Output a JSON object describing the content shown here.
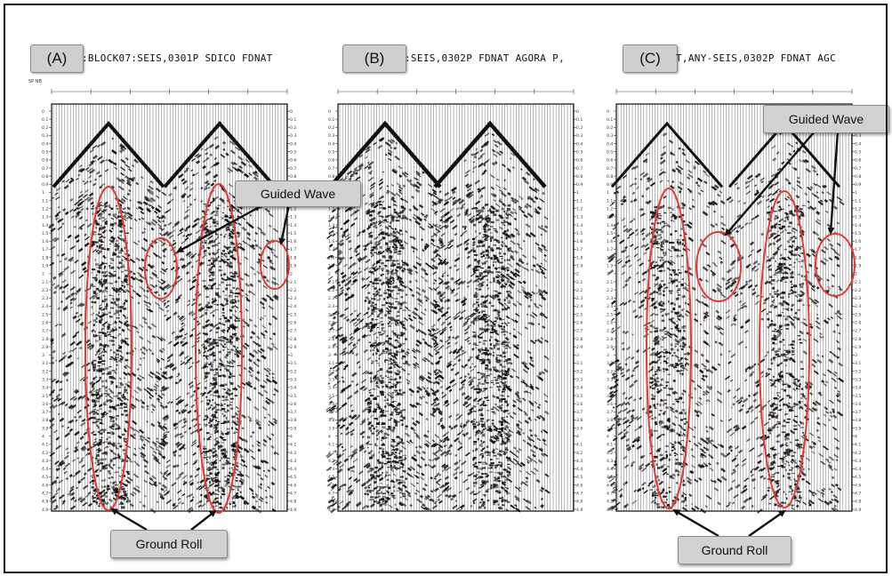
{
  "panels": [
    {
      "id": "A",
      "label": "(A)",
      "header": ":BLOCK07:SEIS,0301P SDICO FDNAT",
      "ground_roll_marked": true,
      "guided_wave_marked": true
    },
    {
      "id": "B",
      "label": "(B)",
      "header": ":SEIS,0302P FDNAT AGORA P,",
      "ground_roll_marked": false,
      "guided_wave_marked": false
    },
    {
      "id": "C",
      "label": "(C)",
      "header": "T,ANY-SEIS,0302P FDNAT AGC",
      "ground_roll_marked": true,
      "guided_wave_marked": true
    }
  ],
  "sp_label": "SP NB",
  "time_axis": {
    "ticks": [
      "0",
      "0.1",
      "0.2",
      "0.3",
      "0.4",
      "0.5",
      "0.6",
      "0.7",
      "0.8",
      "0.9",
      "1",
      "1.1",
      "1.2",
      "1.3",
      "1.4",
      "1.5",
      "1.6",
      "1.7",
      "1.8",
      "1.9",
      "2",
      "2.1",
      "2.2",
      "2.3",
      "2.4",
      "2.5",
      "2.6",
      "2.7",
      "2.8",
      "2.9",
      "3",
      "3.1",
      "3.2",
      "3.3",
      "3.4",
      "3.5",
      "3.6",
      "3.7",
      "3.8",
      "3.9",
      "4",
      "4.1",
      "4.2",
      "4.3",
      "4.4",
      "4.5",
      "4.6",
      "4.7",
      "4.8",
      "4.9"
    ]
  },
  "annotations": {
    "guided_wave": "Guided Wave",
    "ground_roll": "Ground Roll"
  },
  "colors": {
    "highlight": "#e53935",
    "trace": "#111111",
    "background": "#ffffff"
  }
}
